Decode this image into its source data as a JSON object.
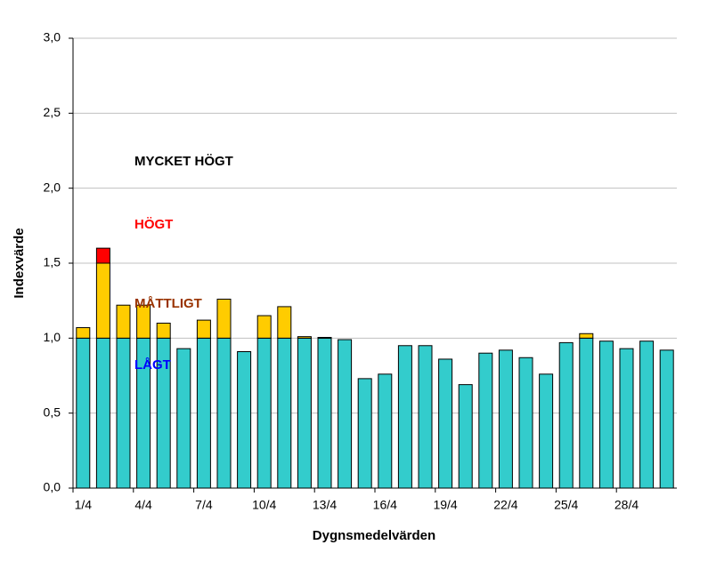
{
  "chart_data": {
    "type": "stacked_bar",
    "x_label": "Dygnsmedelvärden",
    "y_label": "Indexvärde",
    "categories": [
      "1/4",
      null,
      null,
      "4/4",
      null,
      null,
      "7/4",
      null,
      null,
      "10/4",
      null,
      null,
      "13/4",
      null,
      null,
      "16/4",
      null,
      null,
      "19/4",
      null,
      null,
      "22/4",
      null,
      null,
      "25/4",
      null,
      null,
      "28/4",
      null,
      null
    ],
    "series": [
      {
        "color": "#33cccc",
        "values": [
          1.0,
          1.0,
          1.0,
          1.0,
          1.0,
          0.93,
          1.0,
          1.0,
          0.91,
          1.0,
          1.0,
          1.0,
          1.0,
          0.99,
          0.73,
          0.76,
          0.95,
          0.95,
          0.86,
          0.69,
          0.9,
          0.92,
          0.87,
          0.76,
          0.97,
          1.0,
          0.98,
          0.93,
          0.98,
          0.92
        ]
      },
      {
        "color": "#ffcc00",
        "values": [
          0.07,
          0.5,
          0.22,
          0.22,
          0.1,
          null,
          0.12,
          0.26,
          null,
          0.15,
          0.21,
          0.01,
          0.005,
          null,
          null,
          null,
          null,
          null,
          null,
          null,
          null,
          null,
          null,
          null,
          null,
          0.03,
          null,
          null,
          null,
          null
        ]
      },
      {
        "color": "#ff0000",
        "values": [
          null,
          0.1,
          null,
          null,
          null,
          null,
          null,
          null,
          null,
          null,
          null,
          null,
          null,
          null,
          null,
          null,
          null,
          null,
          null,
          null,
          null,
          null,
          null,
          null,
          null,
          null,
          null,
          null,
          null,
          null
        ]
      }
    ],
    "annotations": [
      {
        "text": "MYCKET HÖGT",
        "color": "#000000"
      },
      {
        "text": "HÖGT",
        "color": "#ff0000"
      },
      {
        "text": "MÅTTLIGT",
        "color": "#993300"
      },
      {
        "text": "LÅGT",
        "color": "#0000ff"
      }
    ],
    "ylim": [
      0,
      3
    ],
    "yticks": [
      {
        "value": 0,
        "label": "0,0"
      },
      {
        "value": 0.5,
        "label": "0,5"
      },
      {
        "value": 1,
        "label": "1,0"
      },
      {
        "value": 1.5,
        "label": "1,5"
      },
      {
        "value": 2,
        "label": "2,0"
      },
      {
        "value": 2.5,
        "label": "2,5"
      },
      {
        "value": 3,
        "label": "3,0"
      }
    ],
    "grid": true
  }
}
